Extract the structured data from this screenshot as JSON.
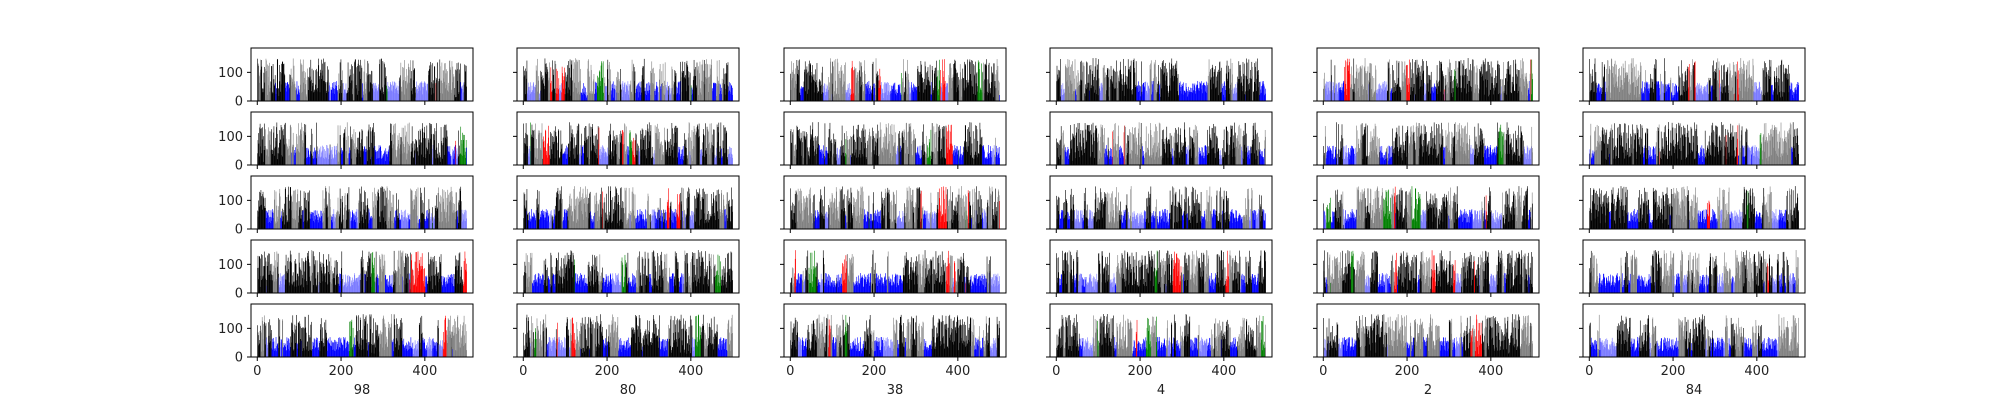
{
  "chart_data": {
    "type": "bar",
    "layout": "grid of small-multiple bar charts, 5 rows x 6 columns, shared axes",
    "rows": 5,
    "columns": 6,
    "column_labels": [
      "98",
      "80",
      "38",
      "4",
      "2",
      "84"
    ],
    "xlim": [
      -15,
      515
    ],
    "ylim": [
      0,
      185
    ],
    "x_ticks": [
      0,
      200,
      400
    ],
    "y_ticks": [
      0,
      100
    ],
    "x_tick_labels": [
      "0",
      "200",
      "400"
    ],
    "y_tick_labels": [
      "0",
      "100"
    ],
    "bars_per_panel": 500,
    "bar_value_range": [
      20,
      150
    ],
    "bar_colors": [
      "#000000",
      "#808080",
      "#0000ff",
      "#7b7bff",
      "#ff0000",
      "#008000"
    ],
    "frame_color": "#000000",
    "background": "#ffffff",
    "grid": false,
    "legend": "none"
  }
}
